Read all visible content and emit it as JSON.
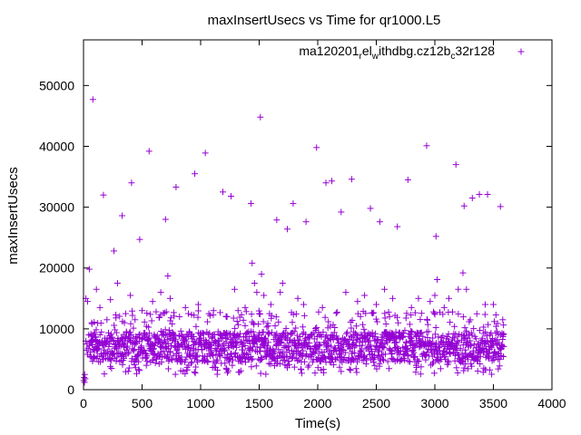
{
  "chart_data": {
    "type": "scatter",
    "title": "maxInsertUsecs vs Time for qr1000.L5",
    "xlabel": "Time(s)",
    "ylabel": "maxInsertUsecs",
    "xlim": [
      0,
      4000
    ],
    "ylim": [
      0,
      57500
    ],
    "x_ticks": [
      0,
      500,
      1000,
      1500,
      2000,
      2500,
      3000,
      3500,
      4000
    ],
    "y_ticks": [
      0,
      10000,
      20000,
      30000,
      40000,
      50000
    ],
    "legend": {
      "placement": "top-right",
      "label_parts": [
        {
          "text": "ma120201",
          "sub": false
        },
        {
          "text": "r",
          "sub": true
        },
        {
          "text": "el",
          "sub": false
        },
        {
          "text": "w",
          "sub": true
        },
        {
          "text": "ithdbg.cz12b",
          "sub": false
        },
        {
          "text": "c",
          "sub": true
        },
        {
          "text": "32r128",
          "sub": false
        }
      ]
    },
    "marker": "+",
    "color": "#9400d3",
    "series": [
      {
        "name": "ma120201relwithdbg.cz12bc32r128",
        "points": [
          [
            2,
            1500
          ],
          [
            5,
            2000
          ],
          [
            8,
            1200
          ],
          [
            10,
            2500
          ],
          [
            15,
            1800
          ],
          [
            20,
            8000
          ],
          [
            25,
            6500
          ],
          [
            30,
            7500
          ],
          [
            35,
            5800
          ],
          [
            40,
            6800
          ],
          [
            45,
            9000
          ],
          [
            50,
            7200
          ],
          [
            55,
            5500
          ],
          [
            60,
            6200
          ],
          [
            65,
            8800
          ],
          [
            70,
            11000
          ],
          [
            75,
            7400
          ],
          [
            80,
            6600
          ],
          [
            20,
            15000
          ],
          [
            35,
            14500
          ],
          [
            50,
            19800
          ],
          [
            80,
            47700
          ],
          [
            110,
            16500
          ],
          [
            140,
            13500
          ],
          [
            170,
            32000
          ],
          [
            200,
            11500
          ],
          [
            230,
            14800
          ],
          [
            260,
            22800
          ],
          [
            290,
            17500
          ],
          [
            330,
            28600
          ],
          [
            360,
            12500
          ],
          [
            400,
            15500
          ],
          [
            410,
            34000
          ],
          [
            440,
            11500
          ],
          [
            480,
            24700
          ],
          [
            500,
            13000
          ],
          [
            560,
            39200
          ],
          [
            590,
            14500
          ],
          [
            620,
            12800
          ],
          [
            660,
            16000
          ],
          [
            700,
            28000
          ],
          [
            720,
            18700
          ],
          [
            740,
            15000
          ],
          [
            790,
            33300
          ],
          [
            820,
            12000
          ],
          [
            870,
            13500
          ],
          [
            950,
            35500
          ],
          [
            980,
            14000
          ],
          [
            1040,
            38900
          ],
          [
            1070,
            12500
          ],
          [
            1110,
            13000
          ],
          [
            1190,
            32500
          ],
          [
            1220,
            12000
          ],
          [
            1260,
            31800
          ],
          [
            1290,
            16500
          ],
          [
            1320,
            13000
          ],
          [
            1380,
            13500
          ],
          [
            1430,
            30600
          ],
          [
            1440,
            20800
          ],
          [
            1460,
            17500
          ],
          [
            1480,
            16000
          ],
          [
            1500,
            12500
          ],
          [
            1510,
            44800
          ],
          [
            1520,
            19000
          ],
          [
            1540,
            15500
          ],
          [
            1600,
            14000
          ],
          [
            1650,
            27900
          ],
          [
            1680,
            16000
          ],
          [
            1700,
            17500
          ],
          [
            1740,
            26400
          ],
          [
            1790,
            30600
          ],
          [
            1830,
            15000
          ],
          [
            1880,
            14000
          ],
          [
            1900,
            27600
          ],
          [
            1990,
            39800
          ],
          [
            2040,
            13500
          ],
          [
            2070,
            34000
          ],
          [
            2120,
            34300
          ],
          [
            2200,
            29200
          ],
          [
            2240,
            16000
          ],
          [
            2290,
            34600
          ],
          [
            2340,
            14500
          ],
          [
            2400,
            15500
          ],
          [
            2450,
            29800
          ],
          [
            2500,
            14000
          ],
          [
            2530,
            27600
          ],
          [
            2570,
            16500
          ],
          [
            2640,
            15000
          ],
          [
            2680,
            26800
          ],
          [
            2770,
            34500
          ],
          [
            2800,
            13500
          ],
          [
            2860,
            15000
          ],
          [
            2930,
            40100
          ],
          [
            2960,
            14500
          ],
          [
            3000,
            15500
          ],
          [
            3010,
            25200
          ],
          [
            3020,
            18100
          ],
          [
            3080,
            13500
          ],
          [
            3120,
            15000
          ],
          [
            3180,
            37000
          ],
          [
            3200,
            16500
          ],
          [
            3240,
            19200
          ],
          [
            3250,
            30200
          ],
          [
            3270,
            16500
          ],
          [
            3320,
            31500
          ],
          [
            3380,
            32100
          ],
          [
            3430,
            14000
          ],
          [
            3450,
            32100
          ],
          [
            3500,
            14000
          ],
          [
            3560,
            30100
          ],
          [
            3580,
            11500
          ]
        ],
        "dense_band": {
          "x_range": [
            60,
            3590
          ],
          "core_y_range": [
            4500,
            9500
          ],
          "spread_y_range": [
            2500,
            13000
          ],
          "point_spacing_s": 3
        }
      }
    ]
  }
}
